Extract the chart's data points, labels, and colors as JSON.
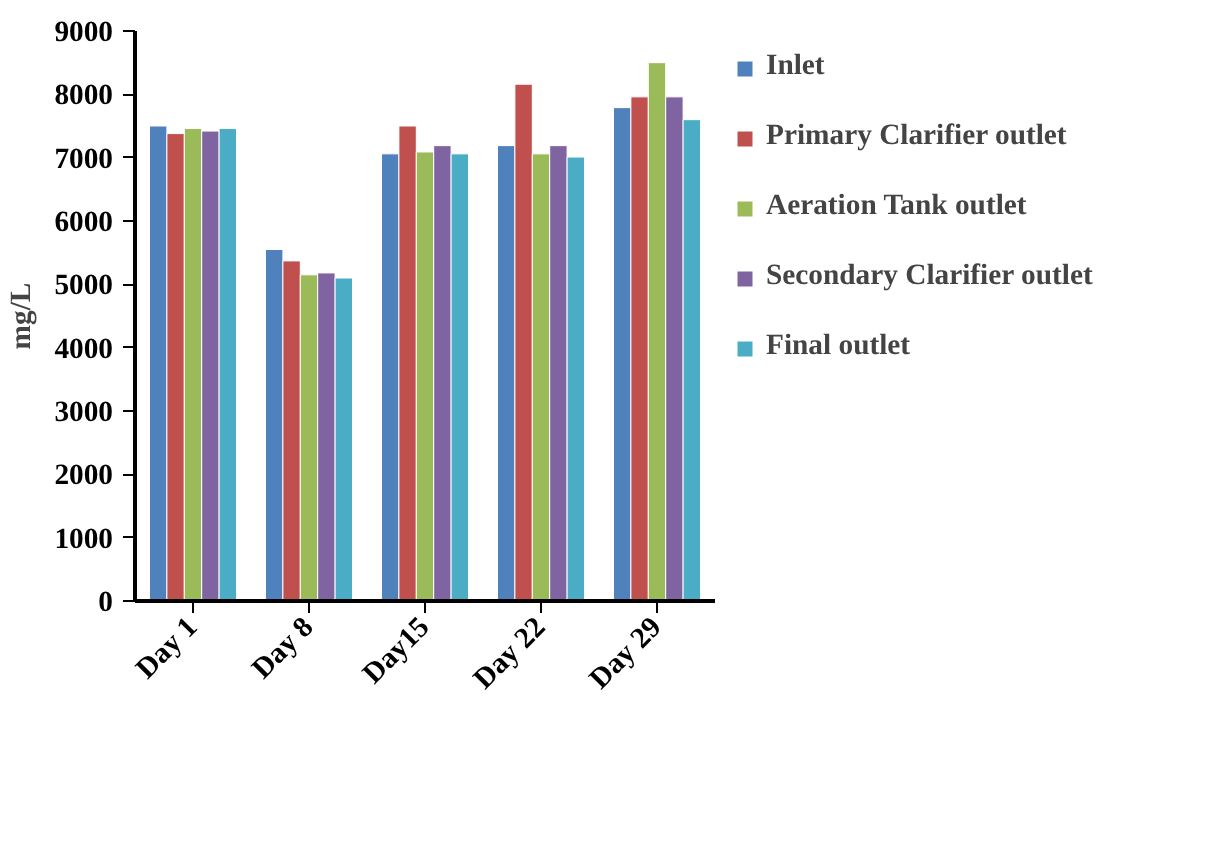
{
  "chart_data": {
    "type": "bar",
    "ylabel": "mg/L",
    "categories": [
      "Day 1",
      "Day 8",
      "Day15",
      "Day 22",
      "Day 29"
    ],
    "series": [
      {
        "name": "Inlet",
        "color": "#4f81bd",
        "values": [
          7500,
          5550,
          7060,
          7190,
          7790
        ]
      },
      {
        "name": "Primary Clarifier outlet",
        "color": "#c0504d",
        "values": [
          7380,
          5370,
          7500,
          8160,
          7960
        ]
      },
      {
        "name": "Aeration Tank outlet",
        "color": "#9bbb59",
        "values": [
          7460,
          5150,
          7090,
          7060,
          8500
        ]
      },
      {
        "name": "Secondary Clarifier outlet",
        "color": "#8064a2",
        "values": [
          7420,
          5180,
          7190,
          7190,
          7960
        ]
      },
      {
        "name": "Final outlet",
        "color": "#4bacc6",
        "values": [
          7460,
          5100,
          7060,
          7010,
          7600
        ]
      }
    ],
    "ylim": [
      0,
      9000
    ],
    "yticks": [
      0,
      1000,
      2000,
      3000,
      4000,
      5000,
      6000,
      7000,
      8000,
      9000
    ],
    "legend": "right"
  }
}
